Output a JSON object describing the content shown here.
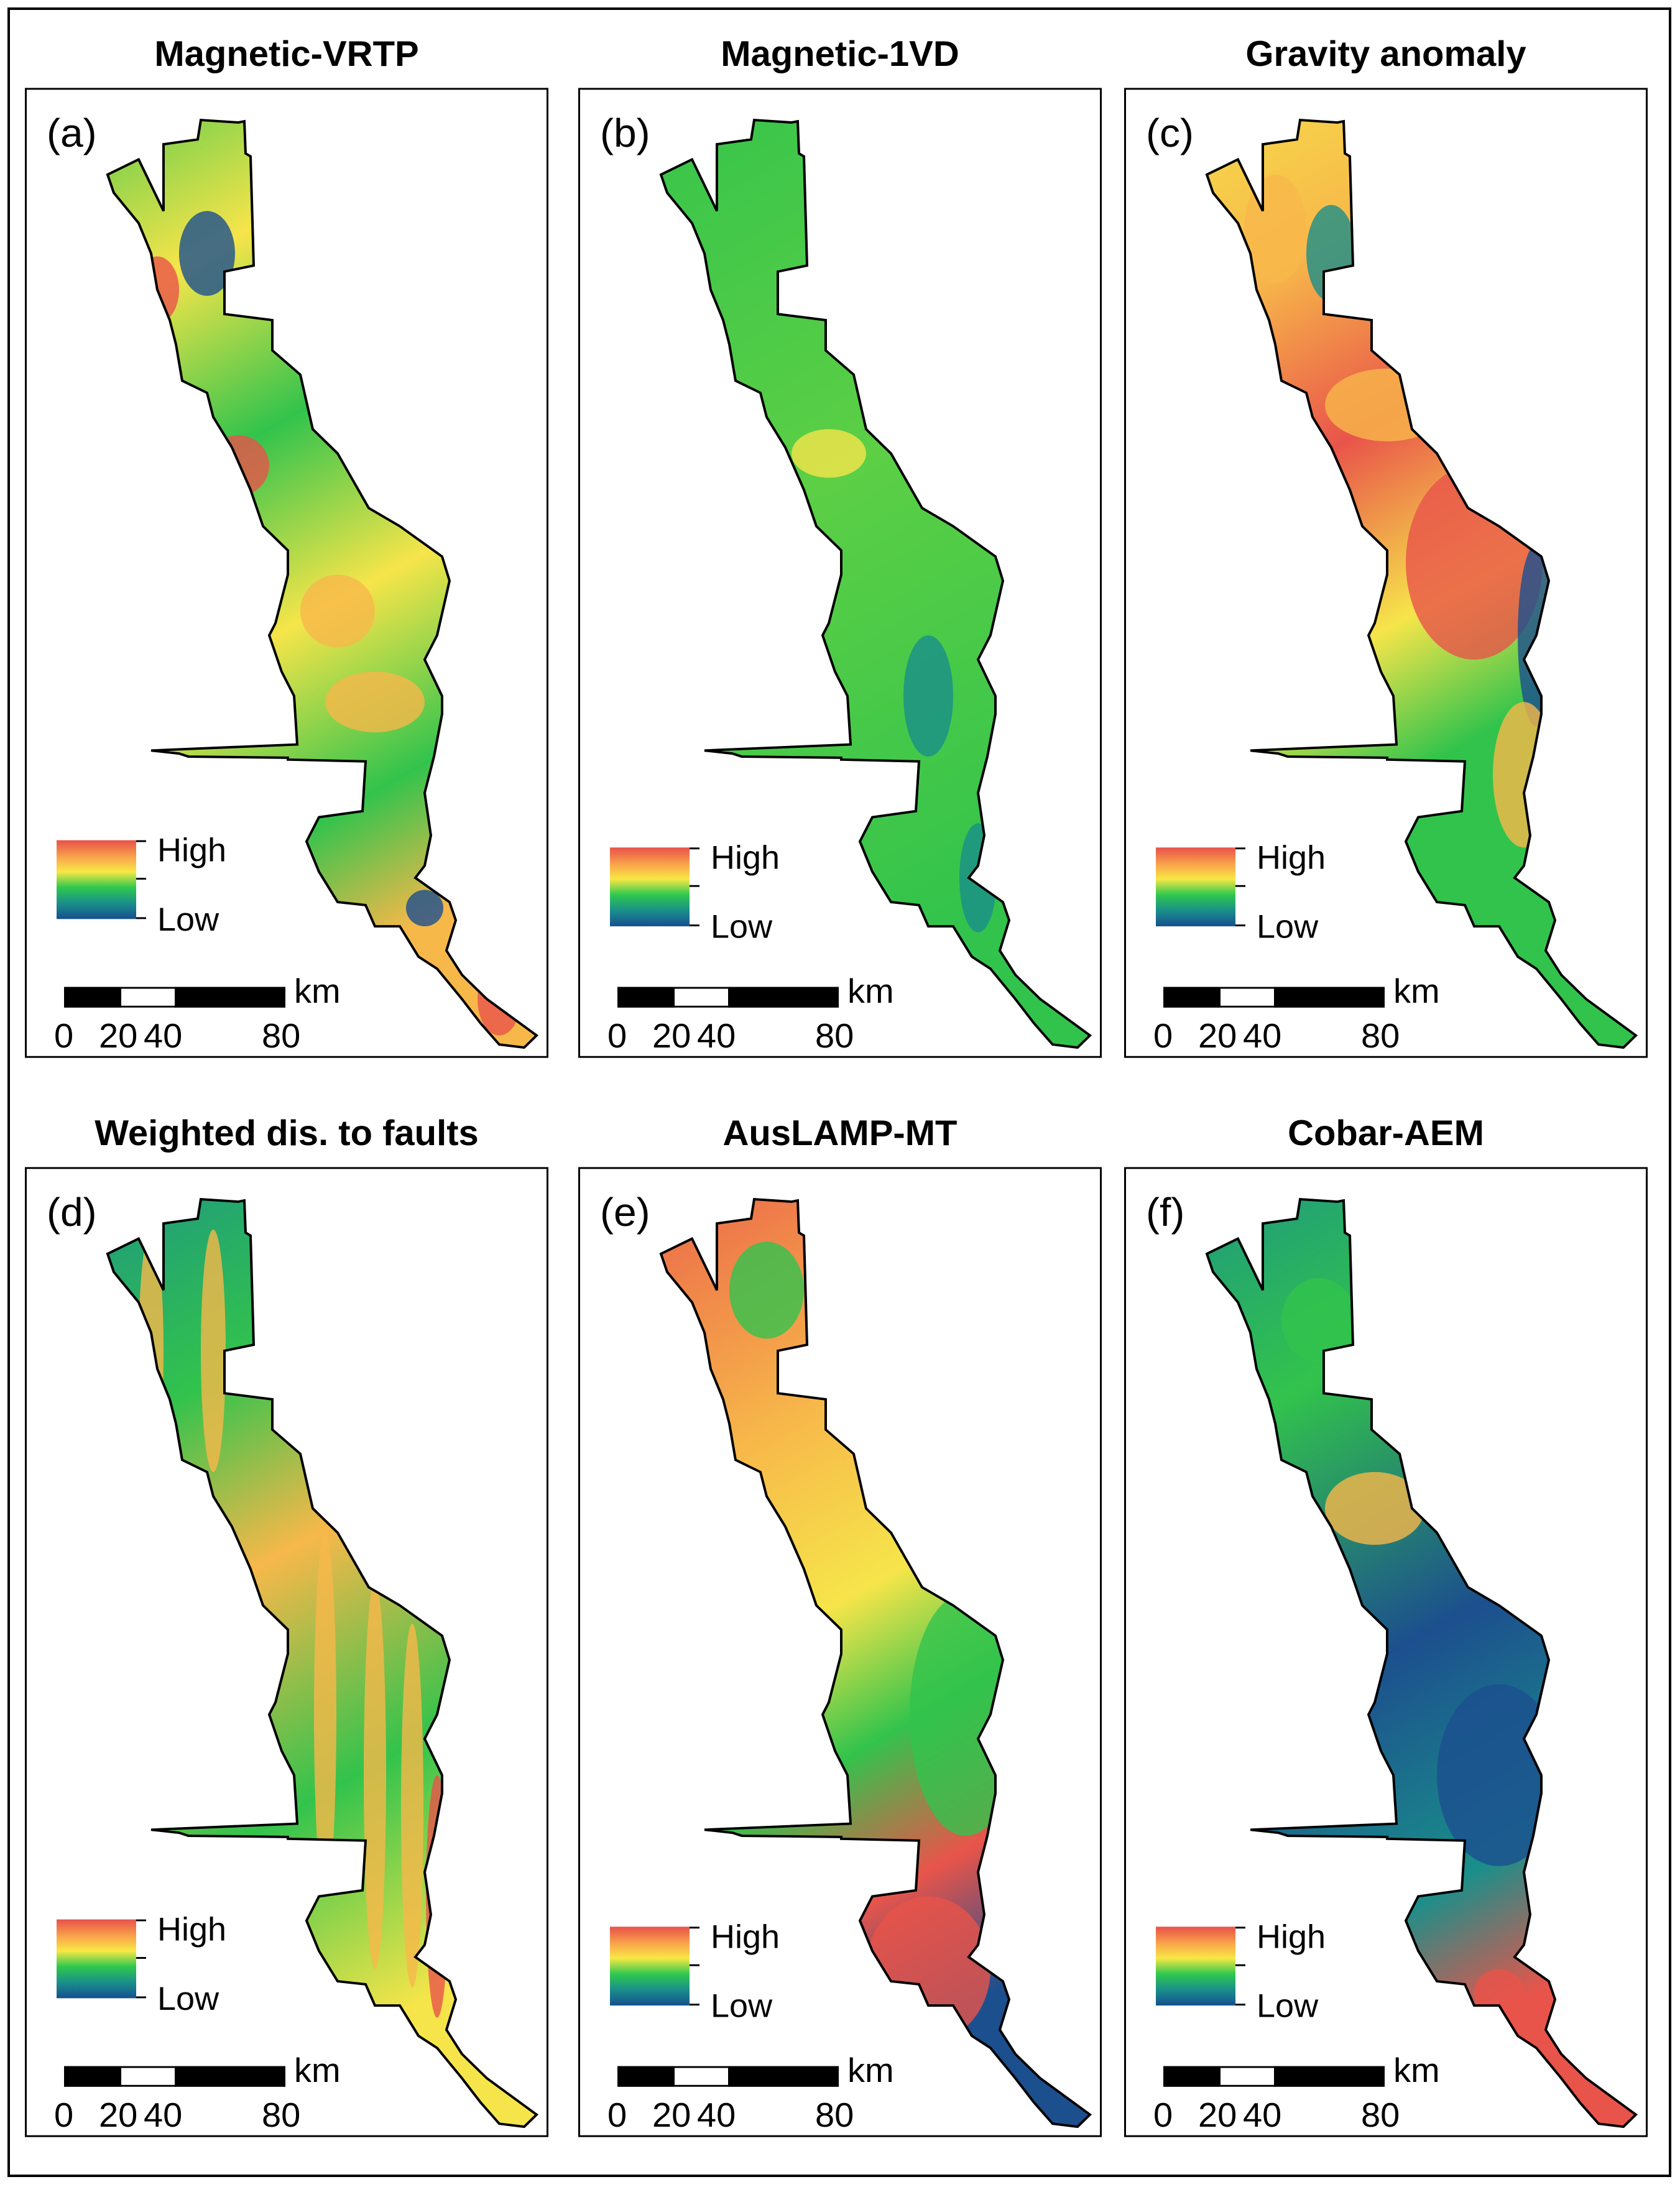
{
  "panels": [
    {
      "label": "(a)",
      "title": "Magnetic-VRTP",
      "legend": {
        "high": "High",
        "low": "Low"
      },
      "scale": {
        "unit": "km",
        "ticks": [
          "0",
          "20",
          "40",
          "80"
        ]
      },
      "palette": [
        "#e9544a",
        "#f7b84a",
        "#f6e54a",
        "#32c34c",
        "#1a8f8a",
        "#1c4f8e"
      ]
    },
    {
      "label": "(b)",
      "title": "Magnetic-1VD",
      "legend": {
        "high": "High",
        "low": "Low"
      },
      "scale": {
        "unit": "km",
        "ticks": [
          "0",
          "20",
          "40",
          "80"
        ]
      },
      "palette": [
        "#e9544a",
        "#f7b84a",
        "#f6e54a",
        "#32c34c",
        "#1a8f8a",
        "#1c4f8e"
      ]
    },
    {
      "label": "(c)",
      "title": "Gravity anomaly",
      "legend": {
        "high": "High",
        "low": "Low"
      },
      "scale": {
        "unit": "km",
        "ticks": [
          "0",
          "20",
          "40",
          "80"
        ]
      },
      "palette": [
        "#e9544a",
        "#f7b84a",
        "#f6e54a",
        "#32c34c",
        "#1a8f8a",
        "#1c4f8e"
      ]
    },
    {
      "label": "(d)",
      "title": "Weighted dis. to faults",
      "legend": {
        "high": "High",
        "low": "Low"
      },
      "scale": {
        "unit": "km",
        "ticks": [
          "0",
          "20",
          "40",
          "80"
        ]
      },
      "palette": [
        "#e9544a",
        "#f7b84a",
        "#f6e54a",
        "#32c34c",
        "#1a8f8a",
        "#1c4f8e"
      ]
    },
    {
      "label": "(e)",
      "title": "AusLAMP-MT",
      "legend": {
        "high": "High",
        "low": "Low"
      },
      "scale": {
        "unit": "km",
        "ticks": [
          "0",
          "20",
          "40",
          "80"
        ]
      },
      "palette": [
        "#e9544a",
        "#f7b84a",
        "#f6e54a",
        "#32c34c",
        "#1a8f8a",
        "#1c4f8e"
      ]
    },
    {
      "label": "(f)",
      "title": "Cobar-AEM",
      "legend": {
        "high": "High",
        "low": "Low"
      },
      "scale": {
        "unit": "km",
        "ticks": [
          "0",
          "20",
          "40",
          "80"
        ]
      },
      "palette": [
        "#e9544a",
        "#f7b84a",
        "#f6e54a",
        "#32c34c",
        "#1a8f8a",
        "#1c4f8e"
      ]
    }
  ],
  "colors": {
    "frame": "#000000",
    "background": "#ffffff"
  }
}
